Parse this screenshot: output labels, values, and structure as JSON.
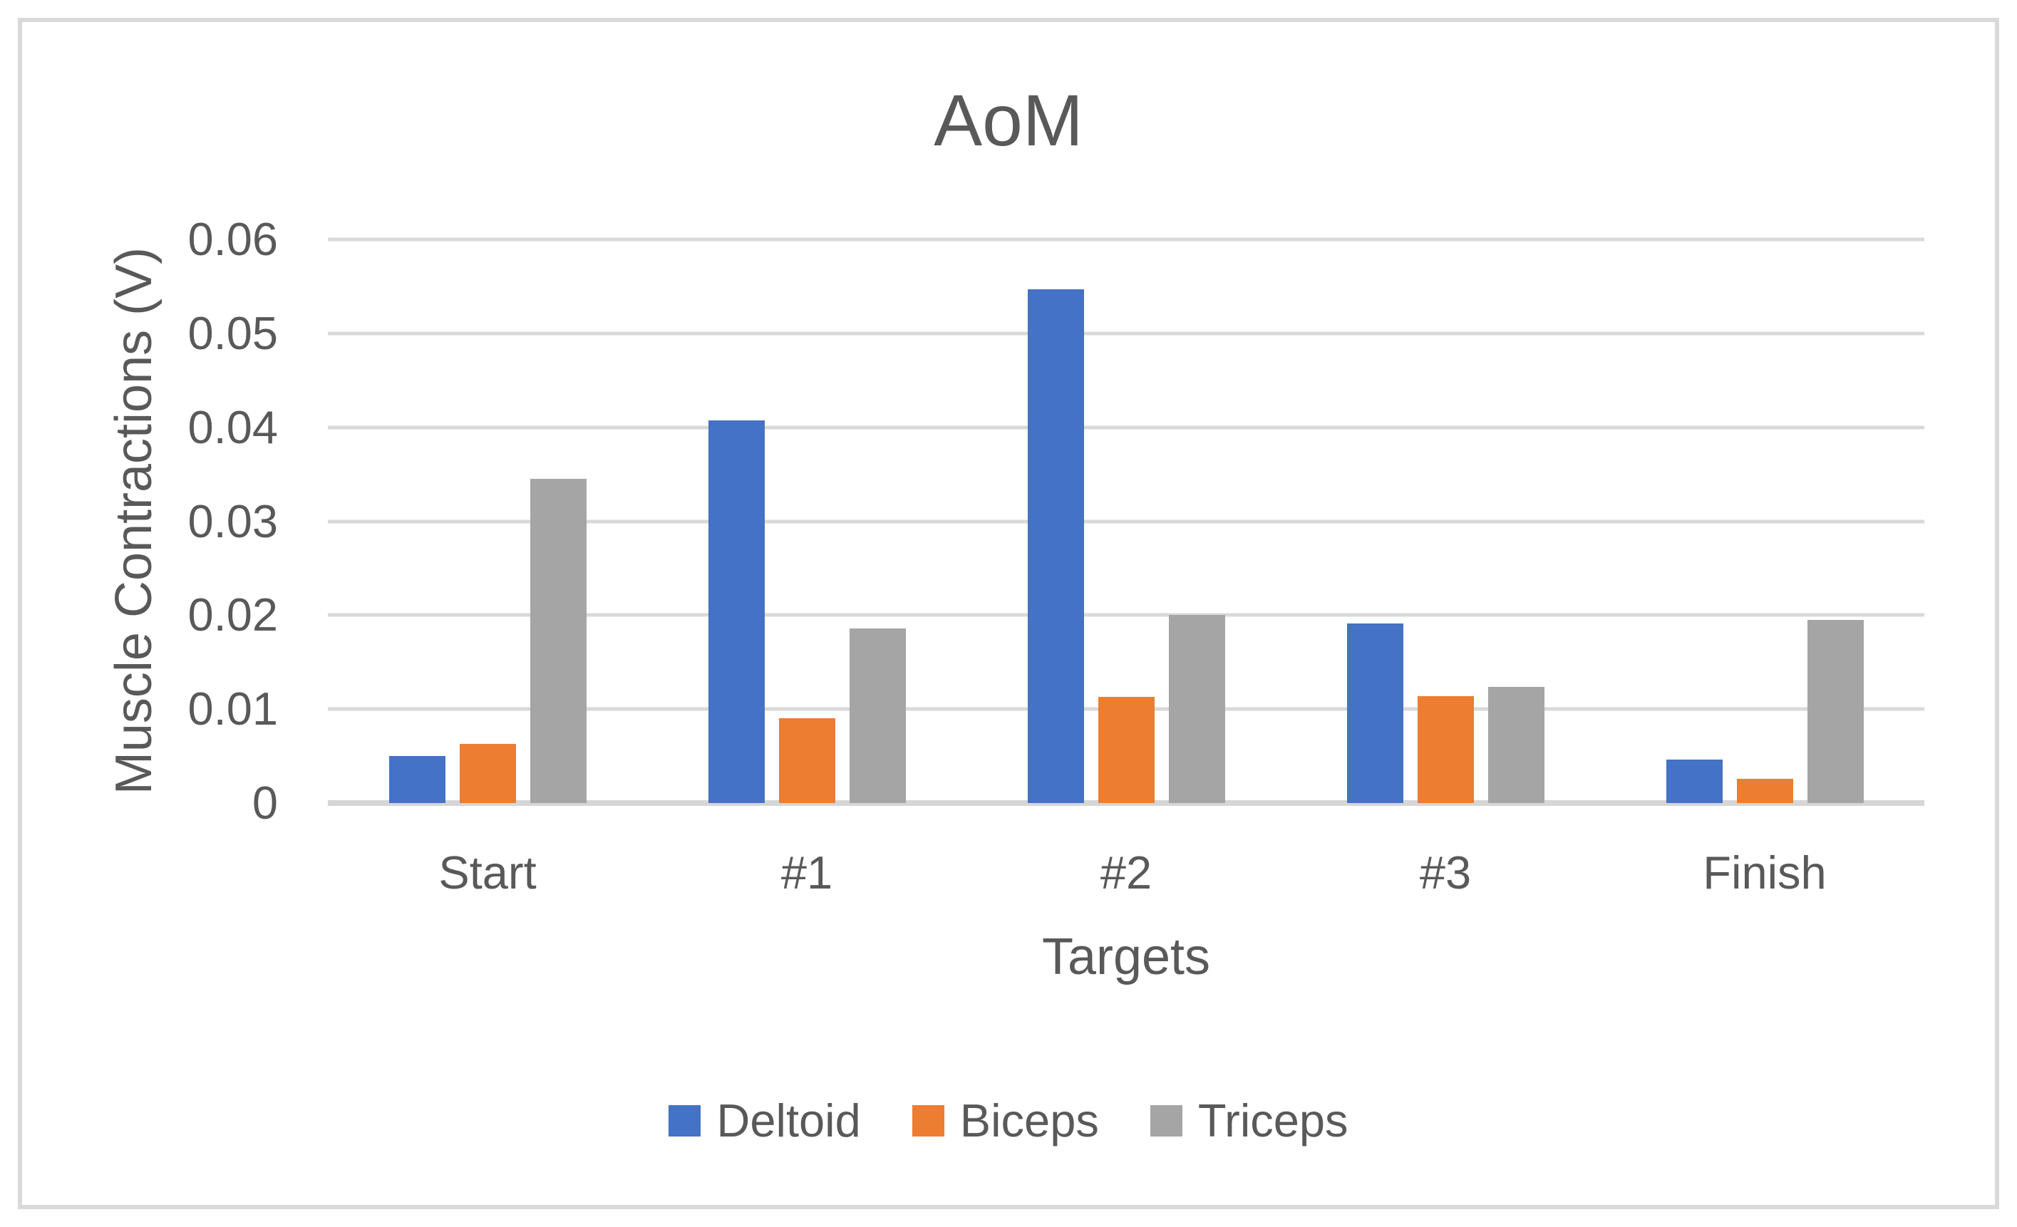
{
  "chart_data": {
    "type": "bar",
    "title": "AoM",
    "xlabel": "Targets",
    "ylabel": "Muscle Contractions (V)",
    "categories": [
      "Start",
      "#1",
      "#2",
      "#3",
      "Finish"
    ],
    "series": [
      {
        "name": "Deltoid",
        "color": "#4472C4",
        "values": [
          0.005,
          0.0407,
          0.0547,
          0.0191,
          0.0046
        ]
      },
      {
        "name": "Biceps",
        "color": "#ED7D31",
        "values": [
          0.0063,
          0.009,
          0.0113,
          0.0114,
          0.0026
        ]
      },
      {
        "name": "Triceps",
        "color": "#A5A5A5",
        "values": [
          0.0345,
          0.0186,
          0.02,
          0.0124,
          0.0195
        ]
      }
    ],
    "ylim": [
      0,
      0.06
    ],
    "ytick_step": 0.01,
    "ytick_labels": [
      "0",
      "0.01",
      "0.02",
      "0.03",
      "0.04",
      "0.05",
      "0.06"
    ],
    "grid": true,
    "legend_position": "bottom",
    "colors": {
      "text": "#595959",
      "gridline": "#D9D9D9",
      "axis_line": "#D6D6D6",
      "frame_border": "#D9D9D9",
      "background": "#FFFFFF"
    }
  }
}
